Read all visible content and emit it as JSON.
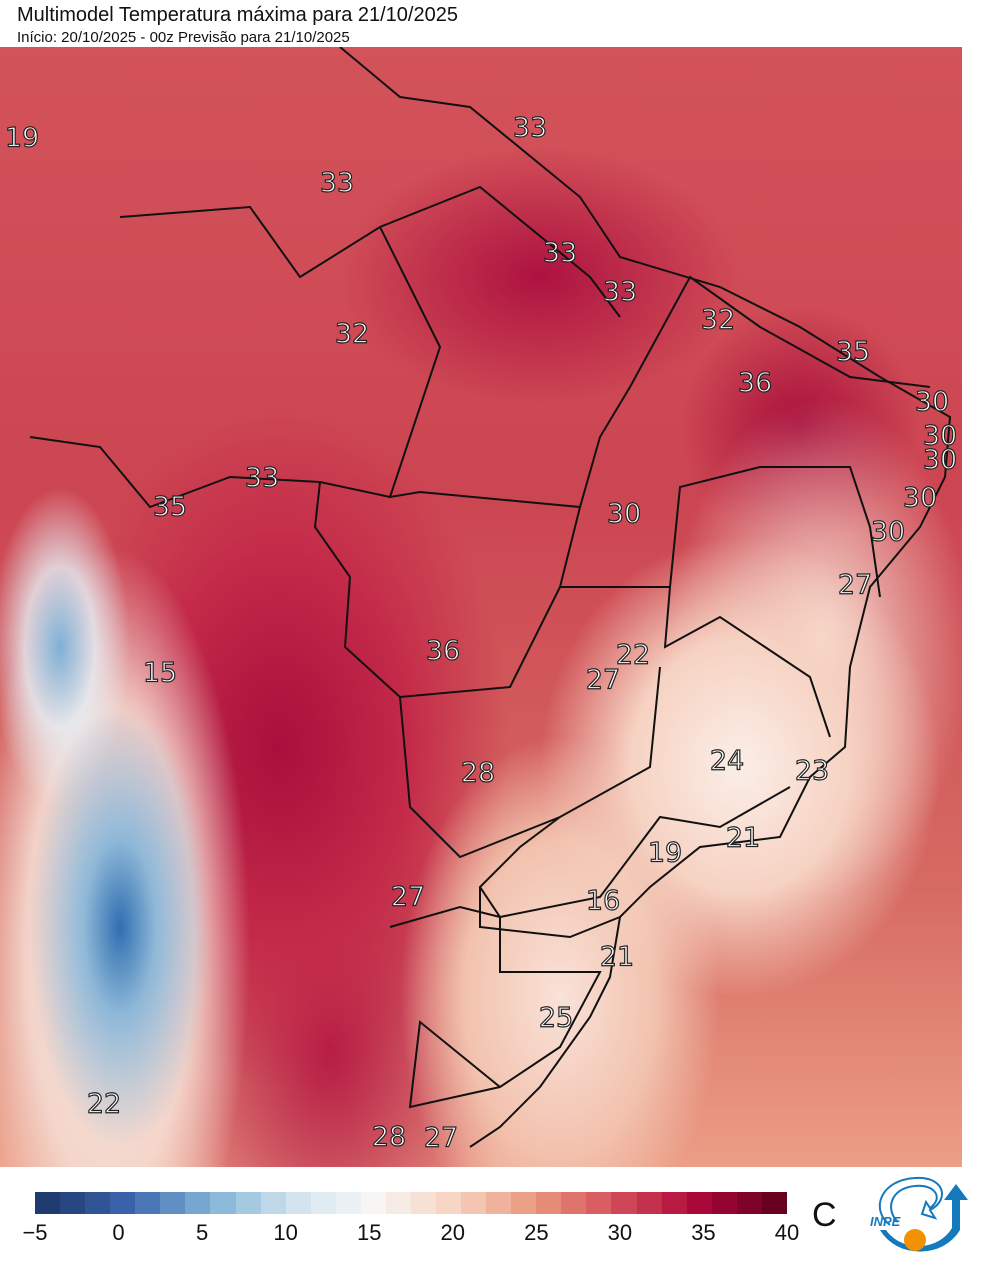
{
  "title": "Multimodel Temperatura máxima para 21/10/2025",
  "subtitle": "Início: 20/10/2025 - 00z  Previsão para 21/10/2025",
  "map_labels": [
    "19",
    "33",
    "33",
    "33",
    "33",
    "32",
    "32",
    "35",
    "36",
    "30",
    "30",
    "30",
    "30",
    "30",
    "33",
    "35",
    "30",
    "27",
    "36",
    "22",
    "27",
    "15",
    "24",
    "23",
    "28",
    "21",
    "19",
    "27",
    "16",
    "21",
    "25",
    "22",
    "28",
    "27"
  ],
  "colorbar": {
    "min": -5,
    "max": 40,
    "segments": 30,
    "ticks": [
      "−5",
      "0",
      "5",
      "10",
      "15",
      "20",
      "25",
      "30",
      "35",
      "40"
    ],
    "unit": "C",
    "stops": [
      "#1f3a6e",
      "#3c64ad",
      "#7fb2d6",
      "#cfe2ee",
      "#f7f7f7",
      "#f7d5c3",
      "#eb9a80",
      "#d4515a",
      "#b0093c",
      "#67001f"
    ]
  },
  "logo": {
    "text": "INPE",
    "colors": {
      "arrow": "#1479bd",
      "sun": "#f39200"
    }
  }
}
